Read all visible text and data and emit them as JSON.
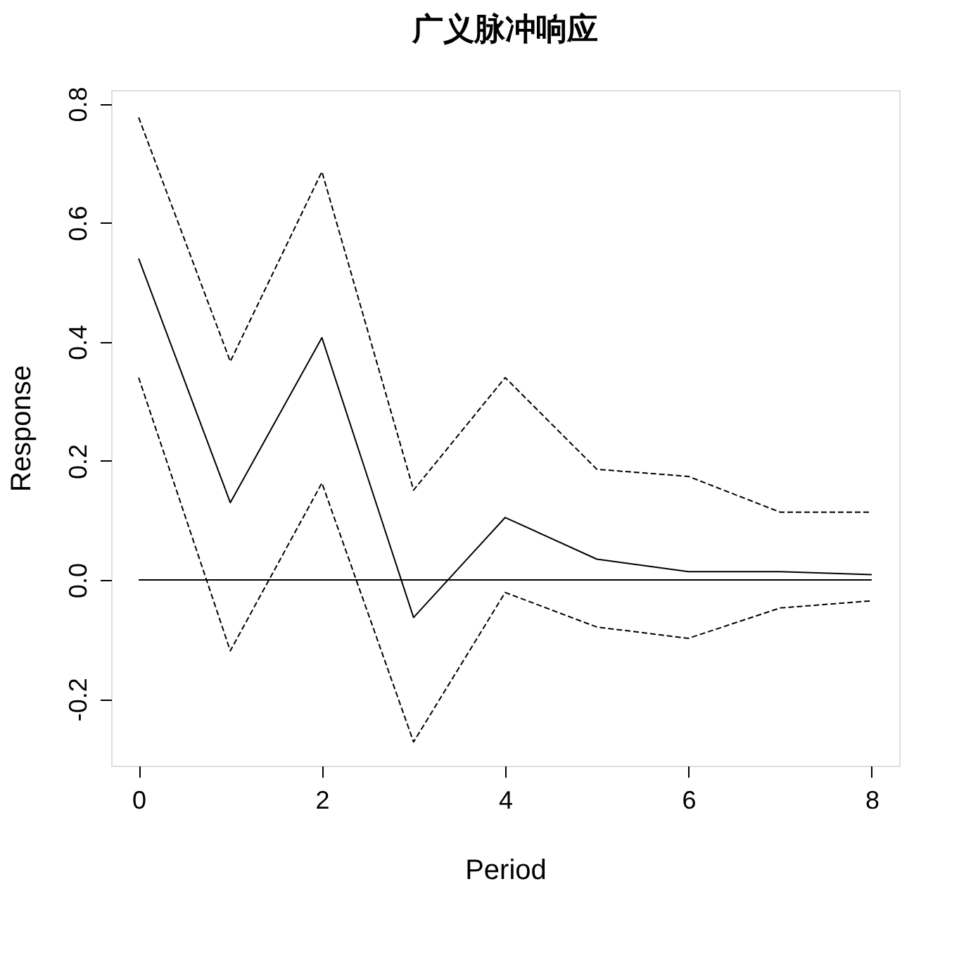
{
  "chart_data": {
    "type": "line",
    "title": "广义脉冲响应",
    "xlabel": "Period",
    "ylabel": "Response",
    "x": [
      0,
      1,
      2,
      3,
      4,
      5,
      6,
      7,
      8
    ],
    "series": [
      {
        "color": "#000000",
        "line_style": "solid",
        "values": [
          0.54,
          0.13,
          0.407,
          -0.063,
          0.105,
          0.035,
          0.014,
          0.014,
          0.009
        ]
      },
      {
        "color": "#000000",
        "line_style": "dashed",
        "values": [
          0.777,
          0.367,
          0.686,
          0.151,
          0.34,
          0.186,
          0.174,
          0.114,
          0.114
        ]
      },
      {
        "color": "#000000",
        "line_style": "dashed",
        "values": [
          0.34,
          -0.119,
          0.163,
          -0.272,
          -0.021,
          -0.079,
          -0.098,
          -0.047,
          -0.035
        ]
      }
    ],
    "ref_lines": [
      {
        "axis": "y",
        "value": 0,
        "color": "#000000",
        "line_style": "solid"
      }
    ],
    "xlim": [
      -0.3,
      8.3
    ],
    "ylim": [
      -0.312,
      0.823
    ],
    "xticks": [
      0,
      2,
      4,
      6,
      8
    ],
    "yticks": [
      -0.2,
      {
        "value": 0,
        "label": "0.0"
      },
      0.2,
      0.4,
      0.6,
      0.8
    ],
    "grid": false,
    "marker": "none"
  }
}
